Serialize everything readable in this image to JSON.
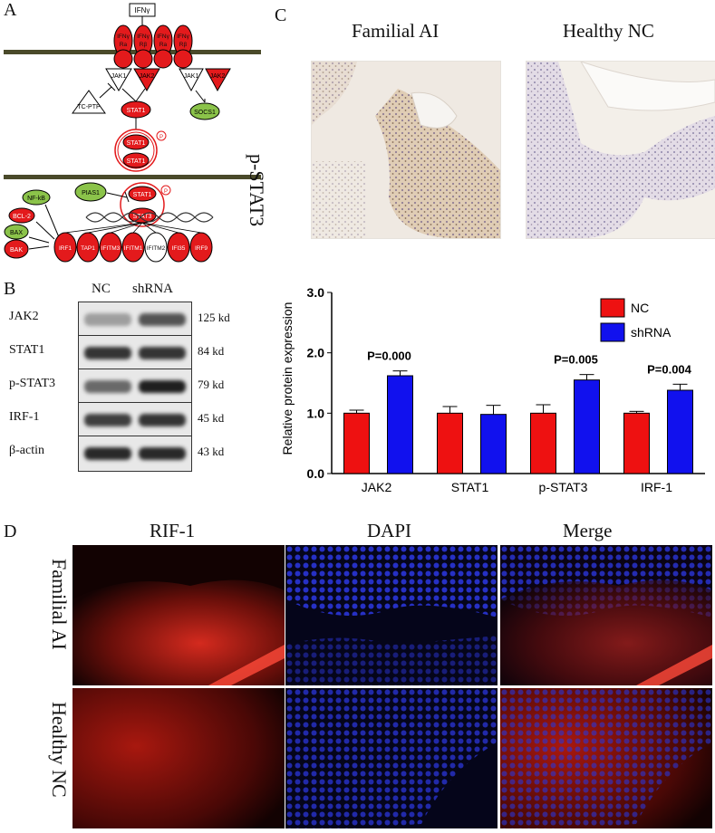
{
  "panel_a": {
    "letter": "A",
    "ligand": "IFNγ",
    "receptors": [
      "IFNγ\nRa",
      "IFNγ\nRβ",
      "IFNγ\nRa",
      "IFNγ\nRβ"
    ],
    "jak_labels": [
      "JAK1",
      "JAK2",
      "JAK1",
      "JAK2"
    ],
    "tcptp": "TC-PTP",
    "socs1": "SOCS1",
    "stat1": "STAT1",
    "pias1": "PIAS1",
    "stat_phospho": "P",
    "nfkb": "NF-kB",
    "bcl2": "BCL-2",
    "bax": "BAX",
    "bak": "BAK",
    "targets": [
      "IRF1",
      "TAP1",
      "IFITM3",
      "IFITM1",
      "IFITM2",
      "IFI35",
      "IRF9"
    ],
    "stat3": "STAT3"
  },
  "panel_b": {
    "letter": "B",
    "col_nc": "NC",
    "col_shrna": "shRNA",
    "rows": [
      {
        "label": "JAK2",
        "kd": "125 kd"
      },
      {
        "label": "STAT1",
        "kd": "84 kd"
      },
      {
        "label": "p-STAT3",
        "kd": "79 kd"
      },
      {
        "label": "IRF-1",
        "kd": "45 kd"
      },
      {
        "label": "β-actin",
        "kd": "43 kd"
      }
    ]
  },
  "panel_c": {
    "letter": "C",
    "col1": "Familial AI",
    "col2": "Healthy NC",
    "row_label": "p-STAT3"
  },
  "chart_data": {
    "type": "bar",
    "ylabel": "Relative protein expression",
    "ylim": [
      0,
      3.0
    ],
    "yticks": [
      "0.0",
      "1.0",
      "2.0",
      "3.0"
    ],
    "categories": [
      "JAK2",
      "STAT1",
      "p-STAT3",
      "IRF-1"
    ],
    "series": [
      {
        "name": "NC",
        "color": "#ee1111",
        "values": [
          1.0,
          1.0,
          1.0,
          1.0
        ],
        "errors": [
          0.05,
          0.11,
          0.14,
          0.03
        ]
      },
      {
        "name": "shRNA",
        "color": "#1111ee",
        "values": [
          1.62,
          0.98,
          1.55,
          1.38
        ],
        "errors": [
          0.08,
          0.15,
          0.09,
          0.1
        ]
      }
    ],
    "annotations": [
      {
        "category": "JAK2",
        "text": "P=0.000"
      },
      {
        "category": "p-STAT3",
        "text": "P=0.005"
      },
      {
        "category": "IRF-1",
        "text": "P=0.004"
      }
    ],
    "legend_position": "top-right"
  },
  "panel_d": {
    "letter": "D",
    "cols": [
      "RIF-1",
      "DAPI",
      "Merge"
    ],
    "rows": [
      "Familial AI",
      "Healthy NC"
    ]
  }
}
